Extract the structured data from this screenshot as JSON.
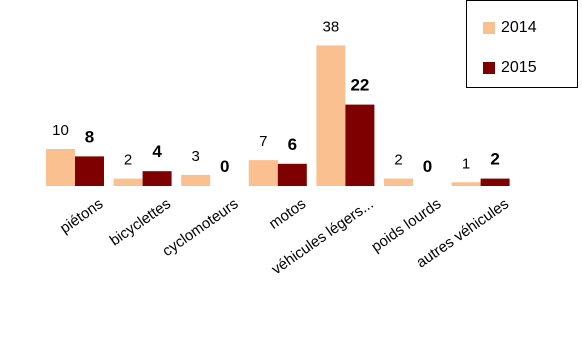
{
  "chart_data": {
    "type": "bar",
    "categories": [
      "piétons",
      "bicyclettes",
      "cyclomoteurs",
      "motos",
      "véhicules légers...",
      "poids lourds",
      "autres véhicules"
    ],
    "series": [
      {
        "name": "2014",
        "values": [
          10,
          2,
          3,
          7,
          38,
          2,
          1
        ],
        "color": "#FAC090",
        "label_bold": false
      },
      {
        "name": "2015",
        "values": [
          8,
          4,
          0,
          6,
          22,
          0,
          2
        ],
        "color": "#7F0000",
        "label_bold": true
      }
    ],
    "ylim": [
      0,
      40
    ],
    "grid": false,
    "legend": "top-right"
  }
}
